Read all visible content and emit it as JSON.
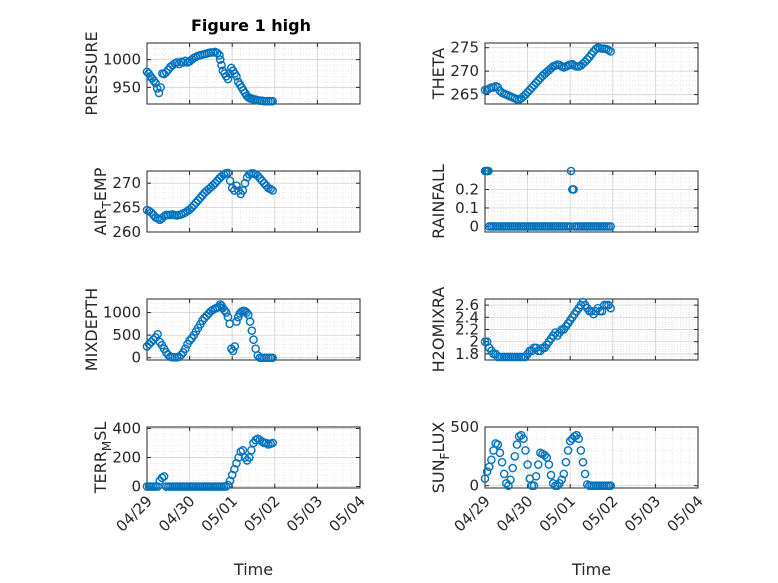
{
  "figure_title": "Figure 1 high",
  "colors": {
    "marker": "#0072BD",
    "axis": "#262626",
    "grid": "#d6d6d6",
    "background": "#ffffff"
  },
  "chart_data": [
    {
      "type": "scatter",
      "title": "Figure 1 high",
      "ylabel": "PRESSURE",
      "xlabel": "",
      "xlim": [
        "04/29",
        "05/04"
      ],
      "ylim": [
        920,
        1030
      ],
      "yticks": [
        950,
        1000
      ],
      "ytick_labels": [
        "950",
        "1000"
      ],
      "xticks_visible": false,
      "grid": true,
      "x": [
        0.0,
        0.04,
        0.08,
        0.12,
        0.16,
        0.2,
        0.24,
        0.28,
        0.32,
        0.36,
        0.4,
        0.45,
        0.5,
        0.55,
        0.6,
        0.65,
        0.7,
        0.75,
        0.8,
        0.85,
        0.9,
        0.95,
        1.0,
        1.05,
        1.1,
        1.15,
        1.2,
        1.25,
        1.3,
        1.35,
        1.4,
        1.45,
        1.5,
        1.55,
        1.6,
        1.65,
        1.7,
        1.72,
        1.75,
        1.78,
        1.82,
        1.86,
        1.9,
        1.94,
        1.98,
        2.02,
        2.06,
        2.1,
        2.14,
        2.18,
        2.22,
        2.26,
        2.3,
        2.34,
        2.38,
        2.42,
        2.46,
        2.5,
        2.55,
        2.6,
        2.65,
        2.7,
        2.75,
        2.8,
        2.85,
        2.9,
        2.95
      ],
      "y": [
        978,
        975,
        970,
        966,
        962,
        958,
        948,
        940,
        950,
        975,
        974,
        977,
        982,
        987,
        990,
        993,
        995,
        992,
        996,
        995,
        998,
        995,
        997,
        1000,
        1003,
        1005,
        1007,
        1008,
        1009,
        1010,
        1011,
        1012,
        1013,
        1013,
        1014,
        1012,
        1008,
        1000,
        990,
        980,
        975,
        970,
        965,
        975,
        985,
        980,
        975,
        970,
        960,
        955,
        950,
        945,
        940,
        935,
        932,
        930,
        930,
        928,
        928,
        927,
        926,
        926,
        925,
        925,
        925,
        925,
        925
      ]
    },
    {
      "type": "scatter",
      "ylabel": "THETA",
      "xlabel": "",
      "xlim": [
        "04/29",
        "05/04"
      ],
      "ylim": [
        263,
        276
      ],
      "yticks": [
        265,
        270,
        275
      ],
      "ytick_labels": [
        "265",
        "270",
        "275"
      ],
      "xticks_visible": false,
      "grid": true,
      "x": [
        0.0,
        0.05,
        0.1,
        0.15,
        0.2,
        0.25,
        0.3,
        0.35,
        0.4,
        0.45,
        0.5,
        0.55,
        0.6,
        0.65,
        0.7,
        0.75,
        0.8,
        0.85,
        0.9,
        0.95,
        1.0,
        1.05,
        1.1,
        1.15,
        1.2,
        1.25,
        1.3,
        1.35,
        1.4,
        1.45,
        1.5,
        1.55,
        1.6,
        1.65,
        1.7,
        1.75,
        1.8,
        1.85,
        1.9,
        1.95,
        2.0,
        2.05,
        2.1,
        2.15,
        2.2,
        2.25,
        2.3,
        2.35,
        2.4,
        2.45,
        2.5,
        2.55,
        2.6,
        2.65,
        2.7,
        2.75,
        2.8,
        2.85,
        2.9,
        2.95
      ],
      "y": [
        266.0,
        266.0,
        266.3,
        266.5,
        266.5,
        266.8,
        266.6,
        265.8,
        265.4,
        265.2,
        265.0,
        264.8,
        264.6,
        264.4,
        264.2,
        264.0,
        263.9,
        264.2,
        264.6,
        265.0,
        265.5,
        266.0,
        266.5,
        267.0,
        267.5,
        268.0,
        268.5,
        269.0,
        269.4,
        269.8,
        270.2,
        270.6,
        271.0,
        271.2,
        271.4,
        271.3,
        271.0,
        270.8,
        271.0,
        271.2,
        271.4,
        271.5,
        271.2,
        271.0,
        271.0,
        271.2,
        271.6,
        272.0,
        272.5,
        273.0,
        273.6,
        274.2,
        274.7,
        275.0,
        274.9,
        274.8,
        274.8,
        274.7,
        274.5,
        274.2
      ]
    },
    {
      "type": "scatter",
      "ylabel": "AIR_TEMP",
      "xlabel": "",
      "xlim": [
        "04/29",
        "05/04"
      ],
      "ylim": [
        260,
        272.5
      ],
      "yticks": [
        260,
        265,
        270
      ],
      "ytick_labels": [
        "260",
        "265",
        "270"
      ],
      "xticks_visible": false,
      "grid": true,
      "x": [
        0.0,
        0.05,
        0.1,
        0.15,
        0.2,
        0.25,
        0.3,
        0.35,
        0.4,
        0.45,
        0.5,
        0.55,
        0.6,
        0.65,
        0.7,
        0.75,
        0.8,
        0.85,
        0.9,
        0.95,
        1.0,
        1.05,
        1.1,
        1.15,
        1.2,
        1.25,
        1.3,
        1.35,
        1.4,
        1.45,
        1.5,
        1.55,
        1.6,
        1.65,
        1.7,
        1.75,
        1.8,
        1.85,
        1.9,
        1.95,
        2.0,
        2.05,
        2.1,
        2.15,
        2.2,
        2.25,
        2.3,
        2.35,
        2.4,
        2.45,
        2.5,
        2.55,
        2.6,
        2.65,
        2.7,
        2.75,
        2.8,
        2.85,
        2.9,
        2.95
      ],
      "y": [
        264.5,
        264.3,
        264.0,
        263.5,
        263.0,
        262.8,
        262.5,
        262.8,
        263.2,
        263.5,
        263.5,
        263.5,
        263.6,
        263.5,
        263.4,
        263.5,
        263.6,
        263.8,
        264.0,
        264.3,
        264.6,
        265.0,
        265.5,
        266.0,
        266.5,
        267.0,
        267.5,
        268.0,
        268.4,
        268.8,
        269.2,
        269.6,
        270.0,
        270.5,
        271.0,
        271.4,
        271.8,
        272.0,
        272.1,
        270.5,
        269.0,
        268.5,
        269.5,
        268.5,
        267.8,
        268.5,
        270.0,
        271.2,
        271.8,
        272.0,
        272.0,
        271.8,
        271.5,
        271.0,
        270.5,
        270.0,
        269.5,
        269.0,
        268.8,
        268.5
      ]
    },
    {
      "type": "scatter",
      "ylabel": "RAINFALL",
      "xlabel": "",
      "xlim": [
        "04/29",
        "05/04"
      ],
      "ylim": [
        -0.03,
        0.3
      ],
      "yticks": [
        0,
        0.1,
        0.2
      ],
      "ytick_labels": [
        "0",
        "0.1",
        "0.2"
      ],
      "xticks_visible": false,
      "grid": true,
      "x": [
        0.0,
        0.02,
        0.04,
        0.06,
        0.08,
        0.1,
        0.15,
        0.2,
        0.25,
        0.3,
        0.35,
        0.4,
        0.45,
        0.5,
        0.55,
        0.6,
        0.65,
        0.7,
        0.75,
        0.8,
        0.85,
        0.9,
        0.95,
        1.0,
        1.05,
        1.1,
        1.15,
        1.2,
        1.25,
        1.3,
        1.35,
        1.4,
        1.45,
        1.5,
        1.55,
        1.6,
        1.65,
        1.7,
        1.75,
        1.8,
        1.85,
        1.9,
        1.95,
        2.0,
        2.02,
        2.05,
        2.08,
        2.1,
        2.15,
        2.2,
        2.25,
        2.3,
        2.35,
        2.4,
        2.45,
        2.5,
        2.55,
        2.6,
        2.65,
        2.7,
        2.75,
        2.8,
        2.85,
        2.9,
        2.95
      ],
      "y": [
        0.3,
        0.3,
        0.3,
        0.3,
        0.3,
        0.0,
        0.0,
        0.0,
        0.0,
        0.0,
        0.0,
        0.0,
        0.0,
        0.0,
        0.0,
        0.0,
        0.0,
        0.0,
        0.0,
        0.0,
        0.0,
        0.0,
        0.0,
        0.0,
        0.0,
        0.0,
        0.0,
        0.0,
        0.0,
        0.0,
        0.0,
        0.0,
        0.0,
        0.0,
        0.0,
        0.0,
        0.0,
        0.0,
        0.0,
        0.0,
        0.0,
        0.0,
        0.0,
        0.0,
        0.3,
        0.2,
        0.2,
        0.0,
        0.0,
        0.0,
        0.0,
        0.0,
        0.0,
        0.0,
        0.0,
        0.0,
        0.0,
        0.0,
        0.0,
        0.0,
        0.0,
        0.0,
        0.0,
        0.0,
        0.0
      ]
    },
    {
      "type": "scatter",
      "ylabel": "MIXDEPTH",
      "xlabel": "",
      "xlim": [
        "04/29",
        "05/04"
      ],
      "ylim": [
        -50,
        1300
      ],
      "yticks": [
        0,
        500,
        1000
      ],
      "ytick_labels": [
        "0",
        "500",
        "1000"
      ],
      "xticks_visible": false,
      "grid": true,
      "x": [
        0.0,
        0.05,
        0.1,
        0.15,
        0.2,
        0.25,
        0.3,
        0.35,
        0.4,
        0.45,
        0.5,
        0.55,
        0.6,
        0.65,
        0.7,
        0.75,
        0.8,
        0.85,
        0.9,
        0.95,
        1.0,
        1.05,
        1.1,
        1.15,
        1.2,
        1.25,
        1.3,
        1.35,
        1.4,
        1.45,
        1.5,
        1.55,
        1.6,
        1.65,
        1.7,
        1.72,
        1.75,
        1.78,
        1.82,
        1.86,
        1.9,
        1.94,
        1.98,
        2.02,
        2.06,
        2.1,
        2.14,
        2.18,
        2.22,
        2.26,
        2.3,
        2.34,
        2.38,
        2.42,
        2.46,
        2.5,
        2.55,
        2.6,
        2.65,
        2.7,
        2.75,
        2.8,
        2.85,
        2.9,
        2.95
      ],
      "y": [
        250,
        300,
        350,
        400,
        450,
        520,
        350,
        280,
        200,
        120,
        60,
        20,
        10,
        10,
        10,
        20,
        60,
        120,
        200,
        300,
        380,
        430,
        500,
        580,
        660,
        740,
        820,
        880,
        930,
        980,
        1030,
        1060,
        1090,
        1110,
        1120,
        1180,
        1150,
        1100,
        1050,
        1000,
        900,
        750,
        200,
        150,
        250,
        800,
        900,
        980,
        1020,
        1040,
        1030,
        1000,
        950,
        800,
        600,
        400,
        200,
        50,
        0,
        0,
        0,
        0,
        0,
        0,
        0
      ]
    },
    {
      "type": "scatter",
      "ylabel": "H2OMIXRA",
      "xlabel": "",
      "xlim": [
        "04/29",
        "05/04"
      ],
      "ylim": [
        1.7,
        2.7
      ],
      "yticks": [
        1.8,
        2.0,
        2.2,
        2.4,
        2.6
      ],
      "ytick_labels": [
        "1.8",
        "2",
        "2.2",
        "2.4",
        "2.6"
      ],
      "xticks_visible": false,
      "grid": true,
      "x": [
        0.0,
        0.05,
        0.1,
        0.15,
        0.2,
        0.25,
        0.3,
        0.35,
        0.4,
        0.45,
        0.5,
        0.55,
        0.6,
        0.65,
        0.7,
        0.75,
        0.8,
        0.85,
        0.9,
        0.95,
        1.0,
        1.05,
        1.1,
        1.15,
        1.2,
        1.25,
        1.3,
        1.35,
        1.4,
        1.45,
        1.5,
        1.55,
        1.6,
        1.65,
        1.7,
        1.75,
        1.8,
        1.85,
        1.9,
        1.95,
        2.0,
        2.05,
        2.1,
        2.15,
        2.2,
        2.25,
        2.3,
        2.35,
        2.4,
        2.45,
        2.5,
        2.55,
        2.6,
        2.65,
        2.7,
        2.75,
        2.8,
        2.85,
        2.9,
        2.95
      ],
      "y": [
        2.0,
        2.0,
        1.9,
        1.85,
        1.8,
        1.8,
        1.75,
        1.75,
        1.75,
        1.75,
        1.75,
        1.75,
        1.75,
        1.75,
        1.75,
        1.75,
        1.75,
        1.75,
        1.75,
        1.75,
        1.8,
        1.85,
        1.85,
        1.9,
        1.9,
        1.85,
        1.85,
        1.9,
        1.9,
        1.95,
        2.0,
        2.05,
        2.1,
        2.15,
        2.1,
        2.15,
        2.2,
        2.2,
        2.25,
        2.3,
        2.35,
        2.4,
        2.45,
        2.5,
        2.55,
        2.6,
        2.65,
        2.6,
        2.55,
        2.5,
        2.5,
        2.45,
        2.5,
        2.55,
        2.5,
        2.5,
        2.6,
        2.6,
        2.6,
        2.55
      ]
    },
    {
      "type": "scatter",
      "ylabel": "TERR_MSL",
      "xlabel": "Time",
      "xlim": [
        "04/29",
        "05/04"
      ],
      "ylim": [
        -10,
        410
      ],
      "yticks": [
        0,
        200,
        400
      ],
      "ytick_labels": [
        "0",
        "200",
        "400"
      ],
      "xticks": [
        "04/29",
        "04/30",
        "05/01",
        "05/02",
        "05/03",
        "05/04"
      ],
      "grid": true,
      "x": [
        0.0,
        0.05,
        0.1,
        0.15,
        0.2,
        0.25,
        0.3,
        0.35,
        0.4,
        0.45,
        0.5,
        0.55,
        0.6,
        0.65,
        0.7,
        0.75,
        0.8,
        0.85,
        0.9,
        0.95,
        1.0,
        1.05,
        1.1,
        1.15,
        1.2,
        1.25,
        1.3,
        1.35,
        1.4,
        1.45,
        1.5,
        1.55,
        1.6,
        1.65,
        1.7,
        1.75,
        1.8,
        1.85,
        1.9,
        1.95,
        2.0,
        2.05,
        2.1,
        2.15,
        2.2,
        2.25,
        2.3,
        2.35,
        2.4,
        2.45,
        2.5,
        2.55,
        2.6,
        2.65,
        2.7,
        2.75,
        2.8,
        2.85,
        2.9,
        2.95
      ],
      "y": [
        0,
        0,
        0,
        0,
        0,
        0,
        40,
        60,
        70,
        0,
        0,
        0,
        0,
        0,
        0,
        0,
        0,
        0,
        0,
        0,
        0,
        0,
        0,
        0,
        0,
        0,
        0,
        0,
        0,
        0,
        0,
        0,
        0,
        0,
        0,
        0,
        0,
        0,
        10,
        40,
        80,
        120,
        160,
        200,
        240,
        250,
        200,
        180,
        200,
        250,
        300,
        320,
        330,
        320,
        310,
        300,
        300,
        290,
        295,
        300
      ]
    },
    {
      "type": "scatter",
      "ylabel": "SUN_FLUX",
      "xlabel": "Time",
      "xlim": [
        "04/29",
        "05/04"
      ],
      "ylim": [
        -20,
        500
      ],
      "yticks": [
        0,
        500
      ],
      "ytick_labels": [
        "0",
        "500"
      ],
      "xticks": [
        "04/29",
        "04/30",
        "05/01",
        "05/02",
        "05/03",
        "05/04"
      ],
      "grid": true,
      "x": [
        0.0,
        0.05,
        0.1,
        0.15,
        0.2,
        0.25,
        0.3,
        0.35,
        0.4,
        0.45,
        0.5,
        0.55,
        0.6,
        0.65,
        0.7,
        0.75,
        0.8,
        0.85,
        0.9,
        0.95,
        1.0,
        1.05,
        1.1,
        1.15,
        1.2,
        1.25,
        1.3,
        1.35,
        1.4,
        1.45,
        1.5,
        1.55,
        1.6,
        1.65,
        1.7,
        1.75,
        1.8,
        1.85,
        1.9,
        1.95,
        2.0,
        2.05,
        2.1,
        2.15,
        2.2,
        2.25,
        2.3,
        2.35,
        2.4,
        2.45,
        2.5,
        2.55,
        2.6,
        2.65,
        2.7,
        2.75,
        2.8,
        2.85,
        2.9,
        2.95
      ],
      "y": [
        60,
        120,
        160,
        220,
        300,
        360,
        350,
        280,
        200,
        100,
        20,
        0,
        50,
        150,
        250,
        350,
        420,
        430,
        400,
        300,
        180,
        60,
        0,
        0,
        80,
        180,
        280,
        270,
        260,
        240,
        180,
        90,
        20,
        0,
        0,
        20,
        50,
        100,
        200,
        300,
        380,
        400,
        420,
        430,
        400,
        300,
        200,
        100,
        10,
        0,
        0,
        0,
        0,
        0,
        0,
        0,
        0,
        0,
        0,
        0
      ]
    }
  ]
}
